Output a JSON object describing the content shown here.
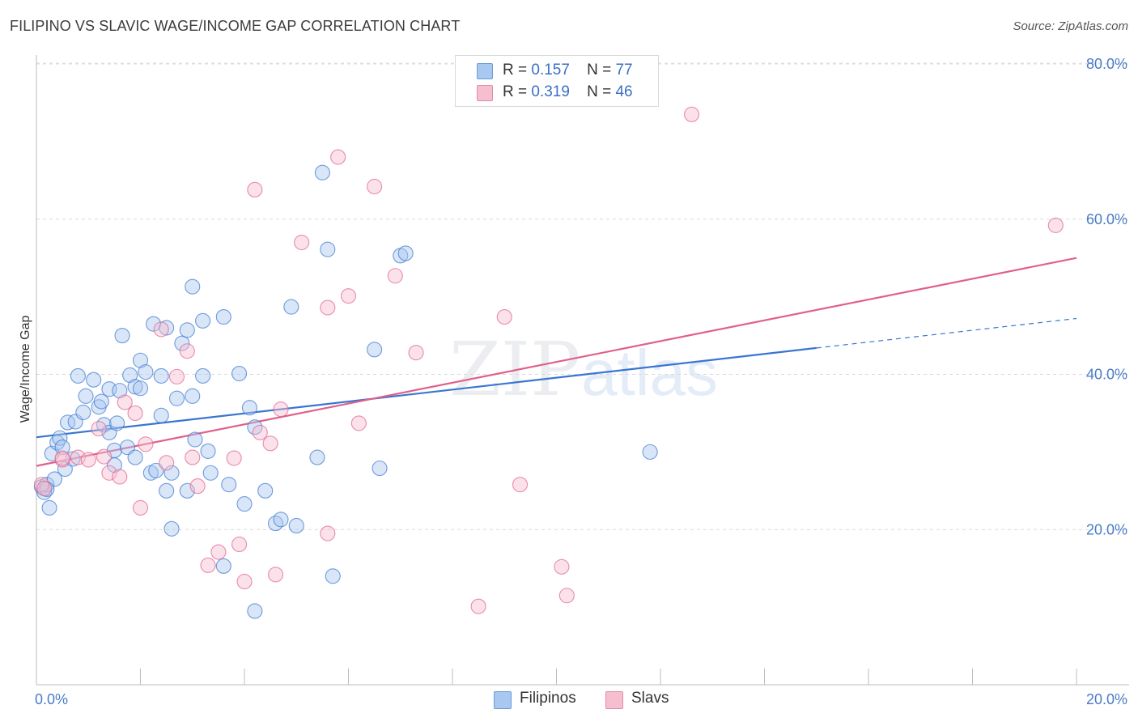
{
  "title": "FILIPINO VS SLAVIC WAGE/INCOME GAP CORRELATION CHART",
  "source": "Source: ZipAtlas.com",
  "legend_stats": [
    {
      "r_label": "R =",
      "r_value": "0.157",
      "n_label": "N =",
      "n_value": "77",
      "color": "#a9c8f0",
      "border": "#6a9ad8"
    },
    {
      "r_label": "R =",
      "r_value": "0.319",
      "n_label": "N =",
      "n_value": "46",
      "color": "#f6bfd0",
      "border": "#e58aa6"
    }
  ],
  "bottom_legend": [
    {
      "label": "Filipinos",
      "color": "#a9c8f0",
      "border": "#6a9ad8"
    },
    {
      "label": "Slavs",
      "color": "#f6bfd0",
      "border": "#e58aa6"
    }
  ],
  "colors": {
    "blue": "#3a75d0",
    "pink": "#e0608a",
    "blue_fill": "#a9c8f0",
    "pink_fill": "#f6bfd0"
  },
  "chart_data": {
    "type": "scatter",
    "ylabel": "Wage/Income Gap",
    "xlim": [
      0,
      20
    ],
    "ylim": [
      0,
      80
    ],
    "x_tick_labels": [
      "0.0%",
      "20.0%"
    ],
    "y_tick_labels": [
      "20.0%",
      "40.0%",
      "60.0%",
      "80.0%"
    ],
    "y_ticks": [
      20,
      40,
      60,
      80
    ],
    "grid": true,
    "series": [
      {
        "name": "Filipinos",
        "trend": {
          "x0": 0,
          "y0": 31.9,
          "x1": 15,
          "y1": 43.4,
          "dash_to_x": 20,
          "dash_to_y": 47.2
        },
        "points": [
          [
            0.1,
            25.5
          ],
          [
            0.15,
            24.8
          ],
          [
            0.2,
            25.8
          ],
          [
            0.25,
            22.8
          ],
          [
            0.3,
            29.8
          ],
          [
            0.35,
            26.5
          ],
          [
            0.4,
            31.2
          ],
          [
            0.45,
            31.8
          ],
          [
            0.5,
            30.6
          ],
          [
            0.55,
            27.8
          ],
          [
            0.6,
            33.8
          ],
          [
            0.7,
            29.1
          ],
          [
            0.75,
            33.9
          ],
          [
            0.8,
            39.8
          ],
          [
            0.9,
            35.1
          ],
          [
            0.95,
            37.2
          ],
          [
            1.1,
            39.3
          ],
          [
            1.2,
            35.8
          ],
          [
            1.25,
            36.5
          ],
          [
            1.3,
            33.5
          ],
          [
            1.4,
            38.1
          ],
          [
            1.4,
            32.5
          ],
          [
            1.5,
            30.2
          ],
          [
            1.5,
            28.3
          ],
          [
            1.55,
            33.7
          ],
          [
            1.6,
            37.9
          ],
          [
            1.65,
            45.0
          ],
          [
            1.75,
            30.6
          ],
          [
            1.8,
            39.9
          ],
          [
            1.9,
            38.4
          ],
          [
            1.9,
            29.3
          ],
          [
            2.0,
            38.2
          ],
          [
            2.0,
            41.8
          ],
          [
            2.1,
            40.3
          ],
          [
            2.2,
            27.3
          ],
          [
            2.25,
            46.5
          ],
          [
            2.3,
            27.6
          ],
          [
            2.4,
            39.8
          ],
          [
            2.4,
            34.7
          ],
          [
            2.5,
            25.0
          ],
          [
            2.5,
            46.0
          ],
          [
            2.6,
            27.3
          ],
          [
            2.6,
            20.1
          ],
          [
            2.7,
            36.9
          ],
          [
            2.8,
            44.0
          ],
          [
            2.9,
            45.7
          ],
          [
            2.9,
            25.0
          ],
          [
            3.0,
            51.3
          ],
          [
            3.0,
            37.2
          ],
          [
            3.05,
            31.6
          ],
          [
            3.2,
            39.8
          ],
          [
            3.2,
            46.9
          ],
          [
            3.3,
            30.1
          ],
          [
            3.35,
            27.3
          ],
          [
            3.6,
            15.3
          ],
          [
            3.6,
            47.4
          ],
          [
            3.7,
            25.8
          ],
          [
            3.9,
            40.1
          ],
          [
            4.0,
            23.3
          ],
          [
            4.1,
            35.7
          ],
          [
            4.2,
            9.5
          ],
          [
            4.2,
            33.2
          ],
          [
            4.4,
            25.0
          ],
          [
            4.6,
            20.8
          ],
          [
            4.7,
            21.3
          ],
          [
            4.9,
            48.7
          ],
          [
            5.0,
            20.5
          ],
          [
            5.4,
            29.3
          ],
          [
            5.5,
            66.0
          ],
          [
            5.6,
            56.1
          ],
          [
            5.7,
            14.0
          ],
          [
            6.5,
            43.2
          ],
          [
            6.6,
            27.9
          ],
          [
            7.0,
            55.3
          ],
          [
            7.1,
            55.6
          ],
          [
            11.8,
            30.0
          ],
          [
            0.2,
            25.2
          ]
        ]
      },
      {
        "name": "Slavs",
        "trend": {
          "x0": 0,
          "y0": 28.2,
          "x1": 20,
          "y1": 55.0
        },
        "points": [
          [
            0.1,
            25.8
          ],
          [
            0.15,
            25.3
          ],
          [
            0.5,
            29.0
          ],
          [
            0.8,
            29.3
          ],
          [
            1.0,
            29.0
          ],
          [
            1.2,
            33.0
          ],
          [
            1.3,
            29.4
          ],
          [
            1.4,
            27.3
          ],
          [
            1.6,
            26.8
          ],
          [
            1.7,
            36.4
          ],
          [
            1.9,
            35.0
          ],
          [
            2.0,
            22.8
          ],
          [
            2.1,
            31.0
          ],
          [
            2.4,
            45.8
          ],
          [
            2.5,
            28.6
          ],
          [
            2.7,
            39.7
          ],
          [
            2.9,
            43.0
          ],
          [
            3.0,
            29.3
          ],
          [
            3.1,
            25.6
          ],
          [
            3.3,
            15.4
          ],
          [
            3.5,
            17.1
          ],
          [
            3.8,
            29.2
          ],
          [
            3.9,
            18.1
          ],
          [
            4.0,
            13.3
          ],
          [
            4.2,
            63.8
          ],
          [
            4.3,
            32.5
          ],
          [
            4.5,
            31.1
          ],
          [
            4.6,
            14.2
          ],
          [
            4.7,
            35.5
          ],
          [
            5.1,
            57.0
          ],
          [
            5.6,
            48.6
          ],
          [
            5.6,
            19.5
          ],
          [
            5.8,
            68.0
          ],
          [
            6.0,
            50.1
          ],
          [
            6.2,
            33.7
          ],
          [
            6.5,
            64.2
          ],
          [
            6.9,
            52.7
          ],
          [
            7.3,
            42.8
          ],
          [
            8.5,
            10.1
          ],
          [
            9.0,
            47.4
          ],
          [
            9.3,
            25.8
          ],
          [
            10.1,
            15.2
          ],
          [
            10.2,
            11.5
          ],
          [
            12.6,
            73.5
          ],
          [
            19.6,
            59.2
          ],
          [
            0.5,
            29.2
          ]
        ]
      }
    ]
  }
}
